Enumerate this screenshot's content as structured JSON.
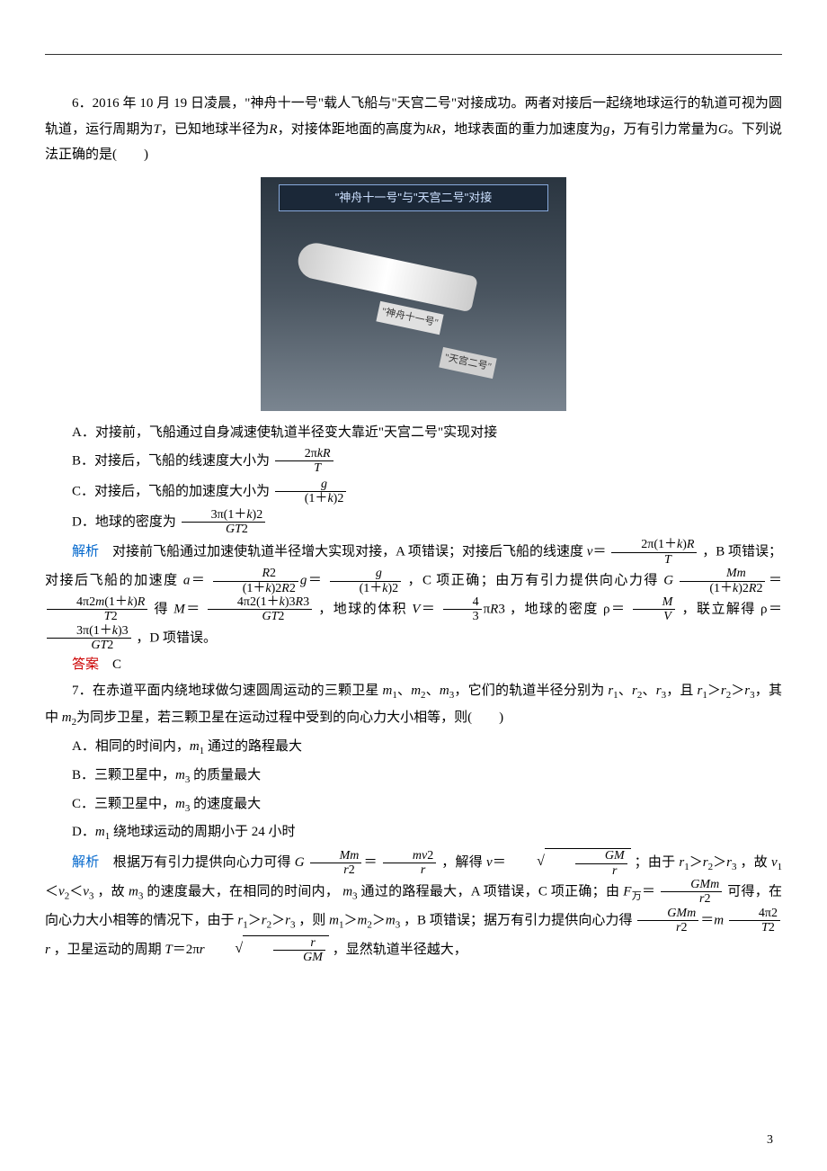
{
  "q6": {
    "number": "6",
    "stem_part1": "．2016 年 10 月 19 日凌晨，\"神舟十一号\"载人飞船与\"天宫二号\"对接成功。两者对接后一起绕地球运行的轨道可视为圆轨道，运行周期为",
    "T": "T",
    "stem_part2": "，已知地球半径为",
    "R": "R",
    "stem_part3": "，对接体距地面的高度为",
    "kR": "kR",
    "stem_part4": "，地球表面的重力加速度为",
    "g": "g",
    "stem_part5": "，万有引力常量为",
    "G": "G",
    "stem_part6": "。下列说法正确的是(　　)",
    "image": {
      "banner": "\"神舟十一号\"与\"天宫二号\"对接",
      "label1": "\"神舟十一号\"",
      "label2": "\"天宫二号\""
    },
    "optA": "A．对接前，飞船通过自身减速使轨道半径变大靠近\"天宫二号\"实现对接",
    "optB_prefix": "B．对接后，飞船的线速度大小为",
    "optB_num": "2π",
    "optB_num_kR": "kR",
    "optB_den": "T",
    "optC_prefix": "C．对接后，飞船的加速度大小为",
    "optC_num": "g",
    "optC_den_pre": "(1＋",
    "optC_den_k": "k",
    "optC_den_post": ")2",
    "optD_prefix": "D．地球的密度为",
    "optD_num_pre": "3π(1＋",
    "optD_num_k": "k",
    "optD_num_post": ")2",
    "optD_den": "GT",
    "optD_den_sup": "2",
    "analysis_label": "解析",
    "analysis_p1a": "　对接前飞船通过加速使轨道半径增大实现对接，A 项错误；对接后飞船的线速度",
    "analysis_v": "v",
    "analysis_eq": "＝",
    "analysis_f1_num_pre": "2π(1＋",
    "analysis_f1_num_k": "k",
    "analysis_f1_num_post": ")",
    "analysis_f1_num_R": "R",
    "analysis_f1_den": "T",
    "analysis_p1b": "，B 项错误；对接后飞船的加速度",
    "analysis_a": "a",
    "analysis_f2_num": "R",
    "analysis_f2_num_sup": "2",
    "analysis_f2_den_pre": "(1＋",
    "analysis_f2_den_k": "k",
    "analysis_f2_den_post": ")2",
    "analysis_f2_den_R2": "R",
    "analysis_f2_den_R2_sup": "2",
    "analysis_gsym": "g",
    "analysis_f3_num": "g",
    "analysis_f3_den_pre": "(1＋",
    "analysis_f3_den_k": "k",
    "analysis_f3_den_post": ")2",
    "analysis_p1c": "，C 项正确；由万有引力提供向心力得",
    "analysis_Gsym": "G",
    "analysis_f4_num": "Mm",
    "analysis_f4_den_pre": "(1＋",
    "analysis_f4_den_k": "k",
    "analysis_f4_den_post": ")2",
    "analysis_f4_den_R2": "R",
    "analysis_f4_den_R2_sup": "2",
    "analysis_f5_num_pre": "4π2",
    "analysis_f5_num_m": "m",
    "analysis_f5_num_mid": "(1＋",
    "analysis_f5_num_k": "k",
    "analysis_f5_num_post": ")",
    "analysis_f5_num_R": "R",
    "analysis_f5_den": "T",
    "analysis_f5_den_sup": "2",
    "analysis_p1d": "得",
    "analysis_M": "M",
    "analysis_f6_num_pre": "4π2(1＋",
    "analysis_f6_num_k": "k",
    "analysis_f6_num_post": ")3",
    "analysis_f6_num_R3": "R",
    "analysis_f6_num_R3_sup": "3",
    "analysis_f6_den": "GT",
    "analysis_f6_den_sup": "2",
    "analysis_p1e": "，地球的体积",
    "analysis_V": "V",
    "analysis_f7_num": "4",
    "analysis_f7_den": "3",
    "analysis_piR3": "π",
    "analysis_R3": "R",
    "analysis_R3_sup": "3",
    "analysis_p1f": "，地球的密度 ρ＝",
    "analysis_f8_num": "M",
    "analysis_f8_den": "V",
    "analysis_p1g": "，联立解得 ρ＝",
    "analysis_f9_num_pre": "3π(1＋",
    "analysis_f9_num_k": "k",
    "analysis_f9_num_post": ")3",
    "analysis_f9_den": "GT",
    "analysis_f9_den_sup": "2",
    "analysis_p1h": "，D 项错误。",
    "answer_label": "答案",
    "answer": "　C"
  },
  "q7": {
    "number": "7",
    "stem": "．在赤道平面内绕地球做匀速圆周运动的三颗卫星",
    "m1": "m",
    "s1": "1",
    "m2": "m",
    "s2": "2",
    "m3": "m",
    "s3": "3",
    "stem2": "，它们的轨道半径分别为",
    "r1": "r",
    "rs1": "1",
    "r2": "r",
    "rs2": "2",
    "r3": "r",
    "rs3": "3",
    "stem3": "，且",
    "cmp": "＞",
    "stem4": "，其中",
    "stem5": "为同步卫星，若三颗卫星在运动过程中受到的向心力大小相等，则(　　)",
    "optA": "A．相同的时间内，",
    "optA_m1": "m",
    "optA_s1": "1",
    "optA_tail": " 通过的路程最大",
    "optB": "B．三颗卫星中，",
    "optB_m3": "m",
    "optB_s3": "3",
    "optB_tail": " 的质量最大",
    "optC": "C．三颗卫星中，",
    "optC_m3": "m",
    "optC_s3": "3",
    "optC_tail": " 的速度最大",
    "optD": "D．",
    "optD_m1": "m",
    "optD_s1": "1",
    "optD_tail": " 绕地球运动的周期小于 24 小时",
    "analysis_label": "解析",
    "an_p1": "　根据万有引力提供向心力可得",
    "an_G": "G",
    "an_f1_num": "Mm",
    "an_f1_den": "r",
    "an_f1_den_sup": "2",
    "an_eq": "＝",
    "an_f2_num": "mv",
    "an_f2_num_sup": "2",
    "an_f2_den": "r",
    "an_p2": "，解得",
    "an_v": "v",
    "an_sqrt_num": "GM",
    "an_sqrt_den": "r",
    "an_p3": "；由于",
    "an_p4": "，故",
    "an_v1": "v",
    "an_vs1": "1",
    "an_v2": "v",
    "an_vs2": "2",
    "an_v3": "v",
    "an_vs3": "3",
    "an_lt": "＜",
    "an_p5": "，故",
    "an_p6": " 的速度最大，在相同的时间内，",
    "an_p7": " 通过的路程最大，A 项错误，C 项正确；由",
    "an_F": "F",
    "an_Fsub": "万",
    "an_f3_num": "GMm",
    "an_f3_den": "r",
    "an_f3_den_sup": "2",
    "an_p8": " 可得，在向心力大小相等的情况下，由于",
    "an_p9": "，则",
    "an_p10": "，B 项错误；据万有引力提供向心力得",
    "an_f4_num": "GMm",
    "an_f4_den": "r",
    "an_f4_den_sup": "2",
    "an_m": "m",
    "an_f5_num": "4π2",
    "an_f5_den": "T",
    "an_f5_den_sup": "2",
    "an_r": "r",
    "an_p11": "，卫星运动的周期",
    "an_T": "T",
    "an_2pi": "＝2π",
    "an_sqrt2_num": "r",
    "an_sqrt2_den": "GM",
    "an_p12": "，显然轨道半径越大，"
  },
  "page_number": "3"
}
